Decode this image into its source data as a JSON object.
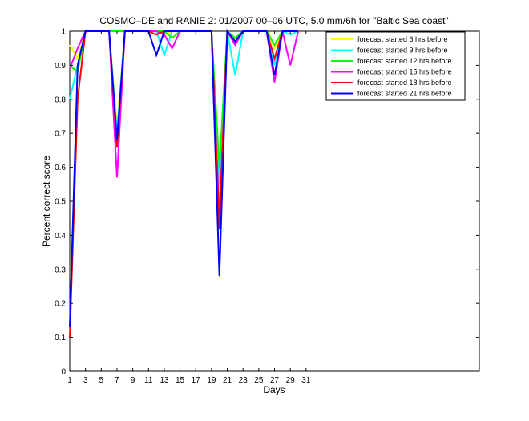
{
  "chart_data": {
    "type": "line",
    "title": "COSMO–DE and RANIE 2: 01/2007 00–06 UTC, 5.0 mm/6h for \"Baltic Sea coast\"",
    "xlabel": "Days",
    "ylabel": "Percent correct score",
    "xlim": [
      1,
      53
    ],
    "ylim": [
      0,
      1
    ],
    "x_ticks": [
      1,
      3,
      5,
      7,
      9,
      11,
      13,
      15,
      17,
      19,
      21,
      23,
      25,
      27,
      29,
      31
    ],
    "y_ticks": [
      0,
      0.1,
      0.2,
      0.3,
      0.4,
      0.5,
      0.6,
      0.7,
      0.8,
      0.9,
      1
    ],
    "y_tick_labels": [
      "0",
      "0.1",
      "0.2",
      "0.3",
      "0.4",
      "0.5",
      "0.6",
      "0.7",
      "0.8",
      "0.9",
      "1"
    ],
    "grid": false,
    "legend_position": "top-right",
    "x": [
      1,
      2,
      3,
      4,
      5,
      6,
      7,
      8,
      9,
      10,
      11,
      12,
      13,
      14,
      15,
      16,
      17,
      18,
      19,
      20,
      21,
      22,
      23,
      24,
      25,
      26,
      27,
      28,
      29,
      30
    ],
    "series": [
      {
        "name": "forecast started 6 hrs before",
        "color": "#ffff00",
        "values": [
          0.96,
          0.92,
          1,
          1,
          1,
          1,
          0.72,
          1,
          1,
          1,
          1,
          1,
          0.99,
          1,
          1,
          1,
          1,
          1,
          1,
          0.52,
          1,
          0.98,
          1,
          1,
          1,
          1,
          0.95,
          1,
          1,
          1
        ]
      },
      {
        "name": "forecast started 9 hrs before",
        "color": "#00ffff",
        "values": [
          0.8,
          0.9,
          1,
          1,
          1,
          1,
          0.7,
          1,
          1,
          1,
          1,
          1,
          0.93,
          1,
          1,
          1,
          1,
          1,
          1,
          0.55,
          1,
          0.87,
          1,
          1,
          1,
          1,
          0.9,
          1,
          0.99,
          1
        ]
      },
      {
        "name": "forecast started 12 hrs before",
        "color": "#00ff00",
        "values": [
          0.9,
          0.88,
          1,
          1,
          1,
          1,
          1,
          1,
          1,
          1,
          1,
          1,
          1,
          0.98,
          1,
          1,
          1,
          1,
          1,
          0.6,
          1,
          0.98,
          1,
          1,
          1,
          1,
          0.96,
          1,
          1,
          1
        ]
      },
      {
        "name": "forecast started 15 hrs before",
        "color": "#ff00ff",
        "values": [
          0.89,
          0.95,
          1,
          1,
          1,
          1,
          0.57,
          1,
          1,
          1,
          1,
          1,
          0.99,
          0.95,
          1,
          1,
          1,
          1,
          1,
          0.45,
          1,
          0.96,
          1,
          1,
          1,
          1,
          0.85,
          1,
          0.9,
          1
        ]
      },
      {
        "name": "forecast started 18 hrs before",
        "color": "#ff0000",
        "values": [
          0.1,
          0.8,
          1,
          1,
          1,
          1,
          0.66,
          1,
          1,
          1,
          1,
          0.99,
          1,
          1,
          1,
          1,
          1,
          1,
          1,
          0.42,
          1,
          0.97,
          1,
          1,
          1,
          1,
          0.92,
          1,
          1,
          1
        ]
      },
      {
        "name": "forecast started 21 hrs before",
        "color": "#0000ff",
        "values": [
          0.13,
          0.9,
          1,
          1,
          1,
          1,
          0.68,
          1,
          1,
          1,
          1,
          0.93,
          1,
          1,
          1,
          1,
          1,
          1,
          1,
          0.28,
          1,
          0.97,
          1,
          1,
          1,
          1,
          0.87,
          1,
          1,
          1
        ]
      }
    ]
  }
}
